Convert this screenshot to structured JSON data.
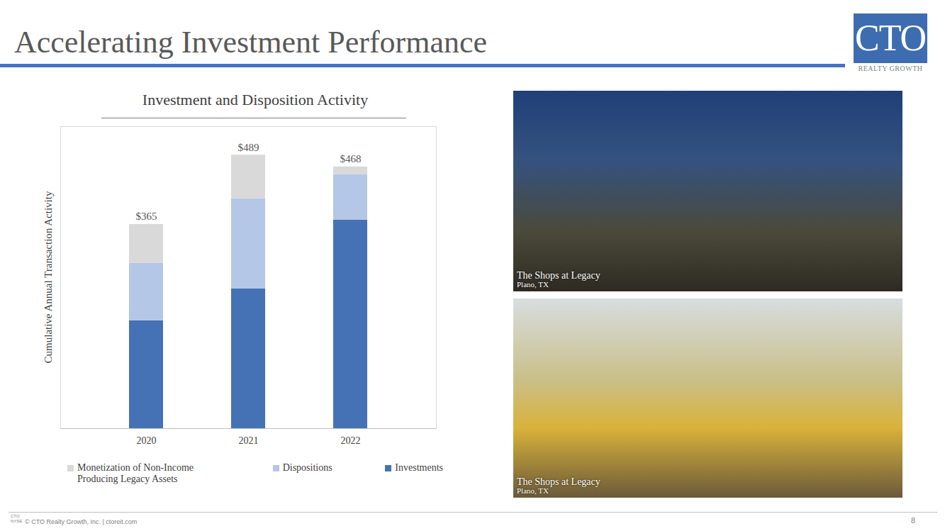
{
  "title": "Accelerating Investment Performance",
  "logo": {
    "text": "CTO",
    "subtext": "REALTY GROWTH"
  },
  "chart_data": {
    "type": "bar",
    "title": "Investment and Disposition Activity",
    "ylabel": "Cumulative Annual Transaction Activity",
    "categories": [
      "2020",
      "2021",
      "2022"
    ],
    "series": [
      {
        "name": "Monetization of Non-Income Producing Legacy Assets",
        "color": "#d9d9d9",
        "values": [
          69,
          78,
          14
        ]
      },
      {
        "name": "Dispositions",
        "color": "#b4c7e7",
        "values": [
          103,
          161,
          81
        ]
      },
      {
        "name": "Investments",
        "color": "#4472b4",
        "values": [
          193,
          250,
          373
        ]
      }
    ],
    "totals": [
      365,
      489,
      468
    ],
    "total_labels": [
      "$365",
      "$489",
      "$468"
    ],
    "stacked": true,
    "ylim": [
      0,
      540
    ],
    "yticks": [],
    "tick_labels": "x",
    "grid": false,
    "legend": "bottom"
  },
  "photos": [
    {
      "caption": "The Shops at Legacy",
      "location": "Plano, TX"
    },
    {
      "caption": "The Shops at Legacy",
      "location": "Plano, TX"
    }
  ],
  "footer": {
    "logo": [
      "CTO",
      "NYSE"
    ],
    "text": "© CTO Realty Growth, Inc. | ctoreit.com",
    "page": "8"
  }
}
